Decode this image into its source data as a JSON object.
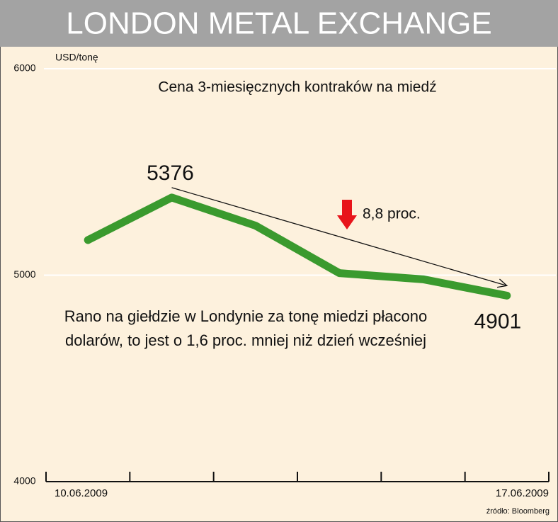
{
  "chart_data": {
    "type": "line",
    "title": "LONDON METAL EXCHANGE",
    "subtitle": "Cena 3-miesięcznych kontraków na miedź",
    "y_unit": "USD/tonę",
    "categories": [
      "10.06.2009",
      null,
      null,
      null,
      null,
      "17.06.2009"
    ],
    "series": [
      {
        "name": "Cena",
        "color": "#3a9a2e",
        "values": [
          5170,
          5376,
          5240,
          5010,
          4980,
          4901
        ]
      }
    ],
    "ylim": [
      4000,
      6000
    ],
    "yticks": [
      4000,
      5000,
      6000
    ],
    "grid": true,
    "change_annotation": "8,8 proc.",
    "note_lines": [
      "Rano na giełdzie w Londynie za tonę miedzi płacono",
      "dolarów, to jest o 1,6 proc. mniej niż dzień wcześniej"
    ],
    "source": "źródło: Bloomberg"
  }
}
